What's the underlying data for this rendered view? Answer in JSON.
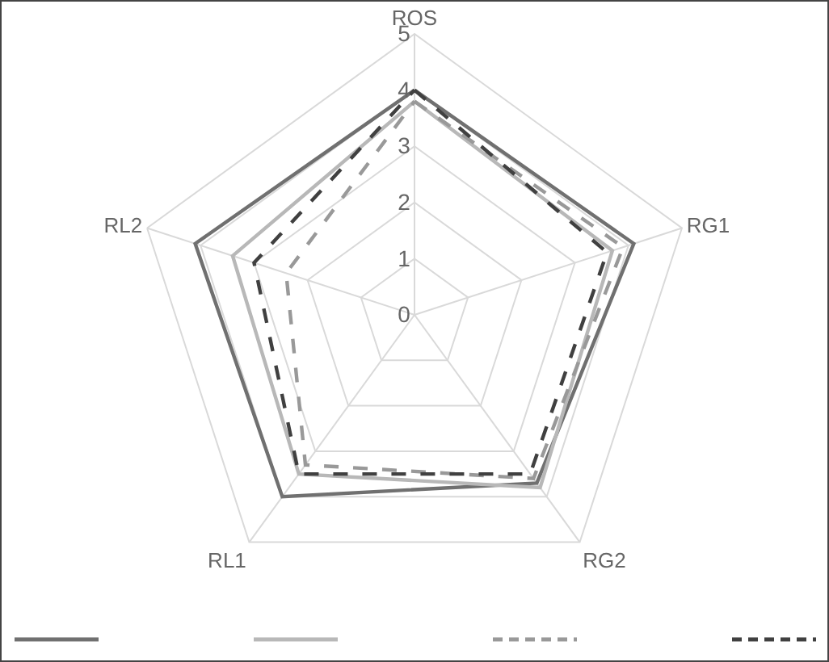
{
  "chart_data": {
    "type": "radar",
    "categories": [
      "ROS",
      "RG1",
      "RG2",
      "RL1",
      "RL2"
    ],
    "series": [
      {
        "color": "#707070",
        "line_style": "solid",
        "values": [
          4.0,
          4.1,
          3.7,
          4.0,
          4.1
        ]
      },
      {
        "color": "#b8b8b8",
        "line_style": "solid",
        "values": [
          3.8,
          3.7,
          3.8,
          3.5,
          3.4
        ]
      },
      {
        "color": "#999999",
        "line_style": "dashed",
        "values": [
          3.8,
          3.9,
          3.6,
          3.3,
          2.4
        ]
      },
      {
        "color": "#404040",
        "line_style": "dashed",
        "values": [
          4.0,
          3.6,
          3.5,
          3.5,
          3.0
        ]
      }
    ],
    "ylim": [
      0,
      5
    ],
    "yticks": [
      0,
      1,
      2,
      3,
      4,
      5
    ],
    "grid": true,
    "marker": "none"
  }
}
